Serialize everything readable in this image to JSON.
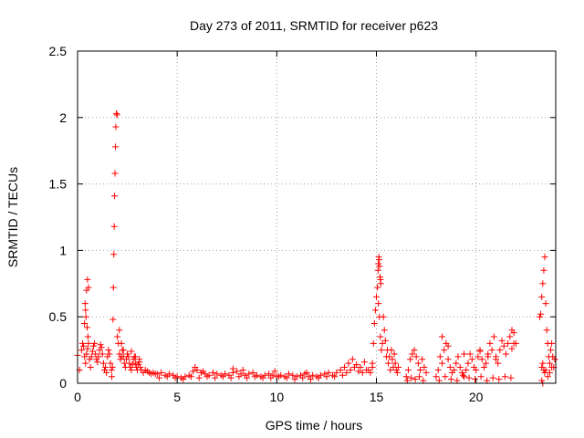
{
  "chart_data": {
    "type": "scatter",
    "title": "Day 273 of 2011, SRMTID for receiver p623",
    "xlabel": "GPS time / hours",
    "ylabel": "SRMTID / TECUs",
    "xlim": [
      0,
      24
    ],
    "ylim": [
      0,
      2.5
    ],
    "grid": true,
    "marker": "+",
    "color": "#ff0000",
    "x_ticks": [
      {
        "value": 0,
        "label": "0"
      },
      {
        "value": 5,
        "label": "5"
      },
      {
        "value": 10,
        "label": "10"
      },
      {
        "value": 15,
        "label": "15"
      },
      {
        "value": 20,
        "label": "20"
      }
    ],
    "y_ticks": [
      {
        "value": 0,
        "label": "0"
      },
      {
        "value": 0.5,
        "label": "0.5"
      },
      {
        "value": 1,
        "label": "1"
      },
      {
        "value": 1.5,
        "label": "1.5"
      },
      {
        "value": 2,
        "label": "2"
      },
      {
        "value": 2.5,
        "label": "2.5"
      }
    ],
    "series": [
      {
        "name": "SRMTID",
        "x": [
          0.0,
          0.1,
          0.2,
          0.25,
          0.3,
          0.35,
          0.4,
          0.45,
          0.5,
          0.55,
          0.6,
          0.65,
          0.7,
          0.75,
          0.8,
          0.85,
          0.9,
          0.95,
          1.0,
          1.05,
          1.1,
          1.15,
          1.2,
          1.25,
          1.3,
          1.35,
          1.4,
          1.45,
          1.5,
          1.55,
          1.6,
          1.65,
          1.7,
          0.35,
          0.4,
          0.45,
          0.5,
          0.55,
          0.38,
          0.42,
          0.48,
          0.52,
          1.72,
          1.75,
          1.78,
          1.8,
          1.82,
          1.84,
          1.86,
          1.88,
          1.9,
          1.92,
          1.95,
          1.98,
          2.0,
          2.05,
          2.1,
          2.15,
          2.2,
          2.25,
          2.3,
          2.35,
          2.4,
          2.45,
          2.5,
          2.55,
          2.6,
          2.65,
          2.7,
          2.75,
          2.8,
          2.85,
          2.9,
          2.95,
          3.0,
          3.05,
          3.1,
          3.15,
          3.2,
          3.3,
          3.4,
          3.5,
          3.6,
          3.7,
          3.8,
          3.9,
          2.1,
          2.2,
          2.3,
          2.5,
          2.7,
          2.9,
          3.1,
          4.0,
          4.2,
          4.4,
          4.6,
          4.8,
          5.0,
          5.2,
          5.4,
          5.6,
          5.8,
          6.0,
          6.2,
          6.4,
          6.6,
          6.8,
          7.0,
          7.2,
          7.4,
          7.6,
          7.8,
          8.0,
          8.2,
          8.4,
          8.6,
          8.8,
          9.0,
          9.2,
          9.4,
          9.6,
          9.8,
          10.0,
          10.2,
          10.4,
          10.6,
          10.8,
          11.0,
          11.2,
          11.4,
          11.6,
          11.8,
          12.0,
          12.2,
          12.4,
          12.6,
          12.8,
          13.0,
          4.1,
          4.5,
          4.9,
          5.3,
          5.7,
          6.1,
          6.5,
          6.9,
          7.3,
          7.7,
          8.1,
          8.5,
          8.9,
          9.3,
          9.7,
          10.1,
          10.5,
          10.9,
          11.3,
          11.7,
          12.1,
          12.5,
          12.9,
          5.9,
          6.0,
          6.3,
          7.8,
          8.3,
          9.9,
          11.5,
          13.2,
          13.4,
          13.6,
          13.8,
          14.0,
          14.2,
          14.4,
          14.6,
          14.8,
          13.3,
          13.5,
          13.7,
          13.9,
          14.1,
          14.3,
          14.5,
          14.7,
          14.8,
          14.85,
          14.9,
          14.95,
          15.0,
          15.05,
          15.1,
          15.15,
          15.2,
          15.25,
          15.3,
          15.35,
          15.4,
          15.45,
          15.5,
          15.55,
          15.6,
          15.65,
          15.7,
          15.75,
          15.8,
          15.85,
          15.9,
          15.95,
          16.0,
          16.05,
          16.1,
          15.08,
          15.1,
          15.12,
          15.14,
          15.16,
          15.18,
          15.2,
          15.22,
          16.5,
          16.6,
          16.7,
          16.8,
          16.9,
          17.0,
          17.1,
          17.2,
          17.3,
          17.4,
          17.5,
          16.55,
          16.75,
          16.95,
          17.15,
          17.35,
          18.0,
          18.1,
          18.2,
          18.3,
          18.4,
          18.5,
          18.6,
          18.7,
          18.8,
          18.9,
          19.0,
          19.1,
          19.2,
          19.3,
          19.4,
          19.5,
          19.6,
          19.7,
          19.8,
          19.9,
          20.0,
          20.1,
          20.2,
          20.3,
          20.4,
          20.5,
          20.6,
          20.7,
          20.8,
          20.9,
          21.0,
          21.1,
          21.2,
          21.3,
          21.4,
          21.5,
          21.6,
          21.7,
          21.8,
          21.9,
          22.0,
          18.15,
          18.45,
          18.75,
          19.05,
          19.35,
          19.65,
          19.95,
          20.25,
          20.55,
          20.85,
          21.15,
          21.45,
          21.75,
          18.3,
          18.6,
          19.4,
          20.2,
          20.6,
          21.0,
          21.8,
          21.9,
          23.2,
          23.25,
          23.3,
          23.35,
          23.4,
          23.45,
          23.5,
          23.55,
          23.6,
          23.65,
          23.7,
          23.75,
          23.8,
          23.85,
          23.9,
          23.95,
          23.3,
          23.35,
          23.4,
          23.45,
          23.5,
          23.6,
          23.7,
          23.8,
          23.3,
          23.35
        ],
        "y": [
          0.21,
          0.1,
          0.25,
          0.3,
          0.28,
          0.2,
          0.15,
          0.22,
          0.26,
          0.3,
          0.18,
          0.12,
          0.2,
          0.24,
          0.28,
          0.3,
          0.22,
          0.18,
          0.16,
          0.2,
          0.25,
          0.29,
          0.27,
          0.22,
          0.15,
          0.1,
          0.12,
          0.08,
          0.2,
          0.25,
          0.22,
          0.15,
          0.1,
          0.45,
          0.55,
          0.7,
          0.78,
          0.72,
          0.6,
          0.5,
          0.42,
          0.35,
          0.05,
          0.12,
          0.48,
          0.72,
          0.97,
          1.18,
          1.41,
          1.58,
          1.78,
          1.93,
          2.03,
          2.02,
          0.35,
          0.3,
          0.22,
          0.18,
          0.2,
          0.25,
          0.2,
          0.15,
          0.12,
          0.18,
          0.22,
          0.2,
          0.15,
          0.12,
          0.1,
          0.14,
          0.18,
          0.2,
          0.15,
          0.12,
          0.1,
          0.14,
          0.16,
          0.12,
          0.1,
          0.08,
          0.1,
          0.09,
          0.08,
          0.07,
          0.08,
          0.07,
          0.4,
          0.3,
          0.25,
          0.22,
          0.24,
          0.2,
          0.18,
          0.07,
          0.08,
          0.06,
          0.07,
          0.06,
          0.05,
          0.04,
          0.05,
          0.06,
          0.09,
          0.1,
          0.08,
          0.07,
          0.06,
          0.08,
          0.07,
          0.06,
          0.07,
          0.06,
          0.08,
          0.09,
          0.07,
          0.06,
          0.07,
          0.08,
          0.06,
          0.05,
          0.06,
          0.07,
          0.06,
          0.05,
          0.06,
          0.05,
          0.07,
          0.06,
          0.05,
          0.06,
          0.07,
          0.05,
          0.06,
          0.05,
          0.06,
          0.07,
          0.08,
          0.06,
          0.08,
          0.04,
          0.05,
          0.04,
          0.03,
          0.05,
          0.04,
          0.05,
          0.04,
          0.05,
          0.04,
          0.05,
          0.04,
          0.05,
          0.04,
          0.04,
          0.05,
          0.04,
          0.03,
          0.04,
          0.03,
          0.04,
          0.05,
          0.05,
          0.12,
          0.1,
          0.09,
          0.11,
          0.1,
          0.09,
          0.08,
          0.1,
          0.12,
          0.15,
          0.18,
          0.14,
          0.12,
          0.16,
          0.1,
          0.12,
          0.06,
          0.08,
          0.1,
          0.12,
          0.09,
          0.08,
          0.1,
          0.08,
          0.15,
          0.3,
          0.45,
          0.55,
          0.65,
          0.72,
          0.6,
          0.5,
          0.35,
          0.25,
          0.3,
          0.5,
          0.4,
          0.32,
          0.2,
          0.25,
          0.15,
          0.2,
          0.1,
          0.25,
          0.18,
          0.12,
          0.22,
          0.15,
          0.1,
          0.08,
          0.12,
          0.85,
          0.9,
          0.95,
          0.93,
          0.88,
          0.8,
          0.78,
          0.75,
          0.05,
          0.1,
          0.18,
          0.22,
          0.25,
          0.2,
          0.15,
          0.1,
          0.18,
          0.12,
          0.08,
          0.02,
          0.04,
          0.03,
          0.05,
          0.02,
          0.05,
          0.1,
          0.2,
          0.15,
          0.25,
          0.3,
          0.18,
          0.12,
          0.08,
          0.1,
          0.15,
          0.2,
          0.12,
          0.08,
          0.05,
          0.1,
          0.15,
          0.22,
          0.18,
          0.12,
          0.1,
          0.2,
          0.25,
          0.18,
          0.12,
          0.15,
          0.22,
          0.3,
          0.25,
          0.35,
          0.2,
          0.15,
          0.25,
          0.32,
          0.28,
          0.22,
          0.3,
          0.35,
          0.4,
          0.38,
          0.3,
          0.02,
          0.05,
          0.03,
          0.02,
          0.06,
          0.04,
          0.03,
          0.05,
          0.02,
          0.04,
          0.03,
          0.05,
          0.04,
          0.35,
          0.28,
          0.22,
          0.24,
          0.2,
          0.18,
          0.26,
          0.3,
          0.5,
          0.52,
          0.65,
          0.75,
          0.85,
          0.95,
          0.6,
          0.4,
          0.3,
          0.2,
          0.15,
          0.25,
          0.3,
          0.2,
          0.12,
          0.18,
          0.12,
          0.15,
          0.1,
          0.08,
          0.1,
          0.05,
          0.08,
          0.12,
          0.02,
          0.0
        ]
      }
    ]
  }
}
